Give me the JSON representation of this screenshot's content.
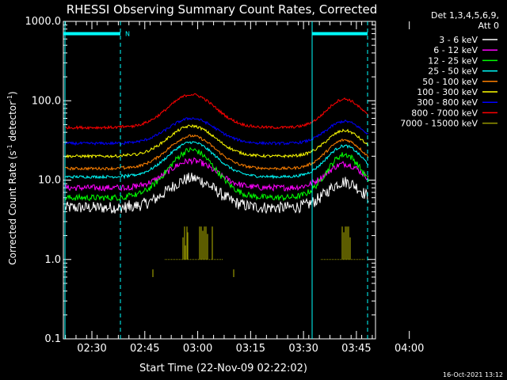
{
  "chart_data": {
    "type": "line",
    "title": "RHESSI Observing Summary Count Rates, Corrected",
    "xlabel": "Start Time (22-Nov-09 02:22:02)",
    "ylabel": "Corrected Count Rate (s⁻¹ detector⁻¹)",
    "ylabel_parts": [
      "Corrected Count Rate (s",
      "-1",
      " detector",
      "-1",
      ")"
    ],
    "yscale": "log",
    "ylim": [
      0.1,
      1000
    ],
    "xlim_minutes": [
      -25,
      1
    ],
    "x_ticks": [
      {
        "label": "02:30",
        "t": -22.5
      },
      {
        "label": "02:45",
        "t": -17.5
      },
      {
        "label": "03:00",
        "t": -12.5
      },
      {
        "label": "03:15",
        "t": -7.5
      },
      {
        "label": "03:30",
        "t": -2.5
      },
      {
        "label": "03:45",
        "t": 2.5
      },
      {
        "label": "04:00",
        "t": 7.5
      }
    ],
    "x_ticks_note": "t is minutes scaled so 15 min = 5 units; domain maps 02:22:02 to 04:02",
    "y_ticks": [
      {
        "label": "1000.0",
        "value": 1000
      },
      {
        "label": "100.0",
        "value": 100
      },
      {
        "label": "10.0",
        "value": 10
      },
      {
        "label": "1.0",
        "value": 1
      },
      {
        "label": "0.1",
        "value": 0.1
      }
    ],
    "legend_header": [
      "Det 1,3,4,5,6,9,",
      "Att 0"
    ],
    "legend_position": "top-right outside",
    "series": [
      {
        "name": "3 - 6 keV",
        "color": "#ffffff",
        "base": 4.5,
        "peak1": 10.5,
        "peak2": 9.5
      },
      {
        "name": "6 - 12 keV",
        "color": "#ff00ff",
        "base": 8.0,
        "peak1": 17.5,
        "peak2": 16.0
      },
      {
        "name": "12 - 25 keV",
        "color": "#00ff00",
        "base": 6.0,
        "peak1": 24.0,
        "peak2": 21.0
      },
      {
        "name": "25 - 50 keV",
        "color": "#00ffff",
        "base": 11.0,
        "peak1": 30.0,
        "peak2": 27.0
      },
      {
        "name": "50 - 100 keV",
        "color": "#ff8000",
        "base": 14.0,
        "peak1": 36.0,
        "peak2": 32.0
      },
      {
        "name": "100 - 300 keV",
        "color": "#ffff00",
        "base": 20.0,
        "peak1": 48.0,
        "peak2": 42.0
      },
      {
        "name": "300 - 800 keV",
        "color": "#0000ff",
        "base": 29.0,
        "peak1": 60.0,
        "peak2": 55.0
      },
      {
        "name": "800 - 7000 keV",
        "color": "#ff0000",
        "base": 46.0,
        "peak1": 120.0,
        "peak2": 105.0
      },
      {
        "name": "7000 - 15000 keV",
        "color": "#999900",
        "base": 1.0,
        "peak1": 2.5,
        "peak2": 2.5
      }
    ],
    "markers": {
      "night_bar_label": "N",
      "bar_value": 700
    },
    "timestamp": "16-Oct-2021 13:12"
  }
}
